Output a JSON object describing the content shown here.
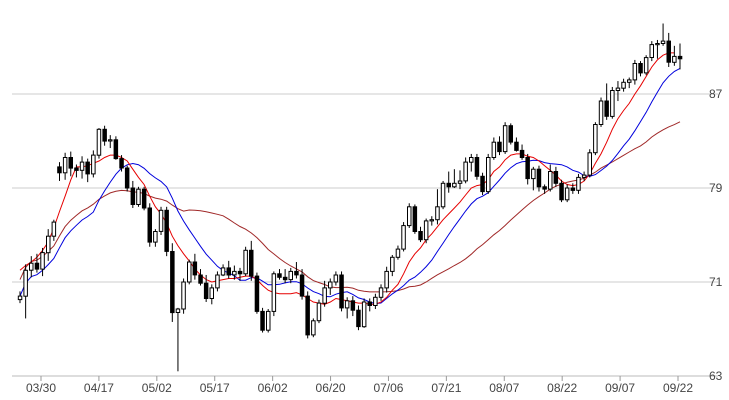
{
  "chart_data": {
    "type": "candlestick",
    "title": "",
    "xlabel": "",
    "ylabel": "",
    "ylim": [
      63,
      93
    ],
    "y_ticks": [
      "63",
      "71",
      "79",
      "87"
    ],
    "x_tick_labels": [
      "03/30",
      "04/17",
      "05/02",
      "05/17",
      "06/02",
      "06/20",
      "07/06",
      "07/21",
      "08/07",
      "08/22",
      "09/07",
      "09/22"
    ],
    "grid": true,
    "axis_side": "right",
    "colors": {
      "up_candle": "#000000",
      "down_candle": "#000000",
      "ma_short": "#e60000",
      "ma_medium": "#0000dd",
      "ma_long": "#a02828",
      "grid": "#cccccc"
    },
    "ohlc": [
      [
        69.5,
        70.2,
        69.2,
        69.8
      ],
      [
        69.8,
        72.5,
        67.9,
        72.0
      ],
      [
        72.0,
        73.2,
        71.4,
        72.6
      ],
      [
        72.6,
        73.4,
        71.8,
        72.1
      ],
      [
        72.1,
        73.9,
        71.5,
        73.5
      ],
      [
        73.5,
        75.5,
        72.8,
        74.9
      ],
      [
        74.9,
        76.3,
        74.5,
        76.1
      ],
      [
        80.8,
        81.2,
        79.6,
        80.3
      ],
      [
        80.3,
        82.0,
        79.7,
        81.6
      ],
      [
        81.6,
        82.1,
        80.0,
        80.7
      ],
      [
        80.7,
        81.0,
        79.9,
        80.5
      ],
      [
        80.5,
        81.7,
        79.8,
        81.2
      ],
      [
        81.2,
        81.5,
        79.5,
        80.2
      ],
      [
        80.2,
        82.2,
        79.9,
        81.8
      ],
      [
        81.8,
        84.1,
        81.5,
        84.0
      ],
      [
        84.0,
        84.3,
        82.6,
        83.0
      ],
      [
        83.0,
        83.5,
        82.4,
        83.1
      ],
      [
        83.1,
        83.4,
        81.4,
        81.5
      ],
      [
        81.5,
        81.8,
        80.4,
        80.7
      ],
      [
        80.7,
        80.9,
        78.7,
        79.0
      ],
      [
        79.0,
        79.6,
        77.3,
        77.6
      ],
      [
        77.6,
        79.1,
        77.4,
        78.9
      ],
      [
        78.9,
        79.1,
        77.1,
        77.3
      ],
      [
        77.3,
        77.7,
        74.0,
        74.4
      ],
      [
        74.4,
        75.5,
        74.0,
        75.3
      ],
      [
        75.3,
        77.4,
        75.0,
        77.1
      ],
      [
        77.1,
        77.4,
        73.2,
        73.6
      ],
      [
        73.6,
        74.3,
        67.6,
        68.4
      ],
      [
        68.4,
        68.8,
        63.4,
        68.7
      ],
      [
        68.7,
        71.3,
        68.3,
        71.0
      ],
      [
        71.0,
        72.9,
        70.8,
        72.7
      ],
      [
        72.7,
        73.4,
        71.2,
        71.6
      ],
      [
        71.6,
        72.1,
        70.7,
        70.9
      ],
      [
        70.9,
        71.6,
        69.3,
        69.6
      ],
      [
        69.6,
        70.8,
        69.1,
        70.5
      ],
      [
        70.5,
        71.9,
        70.2,
        71.6
      ],
      [
        71.6,
        72.5,
        71.5,
        72.2
      ],
      [
        72.2,
        72.8,
        71.3,
        71.6
      ],
      [
        71.6,
        72.4,
        71.2,
        71.9
      ],
      [
        71.9,
        72.2,
        71.1,
        71.7
      ],
      [
        71.7,
        74.0,
        71.5,
        73.7
      ],
      [
        73.7,
        74.5,
        71.1,
        71.5
      ],
      [
        71.5,
        71.8,
        68.3,
        68.5
      ],
      [
        68.5,
        68.8,
        66.7,
        66.9
      ],
      [
        66.9,
        68.7,
        66.7,
        68.5
      ],
      [
        68.5,
        71.9,
        68.1,
        71.7
      ],
      [
        71.7,
        72.1,
        71.2,
        71.4
      ],
      [
        71.4,
        72.1,
        70.9,
        71.2
      ],
      [
        71.2,
        72.2,
        70.9,
        71.9
      ],
      [
        71.9,
        72.7,
        71.3,
        71.6
      ],
      [
        71.6,
        72.1,
        69.5,
        69.8
      ],
      [
        69.8,
        70.2,
        66.2,
        66.5
      ],
      [
        66.5,
        67.9,
        66.3,
        67.7
      ],
      [
        67.7,
        69.5,
        67.5,
        69.2
      ],
      [
        69.2,
        71.1,
        68.9,
        70.5
      ],
      [
        70.5,
        71.3,
        69.9,
        71.0
      ],
      [
        71.0,
        71.9,
        70.7,
        71.6
      ],
      [
        71.6,
        71.9,
        68.5,
        68.8
      ],
      [
        68.8,
        69.7,
        67.9,
        69.4
      ],
      [
        69.4,
        69.8,
        68.1,
        68.6
      ],
      [
        68.6,
        69.0,
        66.9,
        67.2
      ],
      [
        67.2,
        69.6,
        67.1,
        69.3
      ],
      [
        69.3,
        69.6,
        68.5,
        69.0
      ],
      [
        69.0,
        70.0,
        68.7,
        69.7
      ],
      [
        69.7,
        70.8,
        69.4,
        70.5
      ],
      [
        70.5,
        72.3,
        70.1,
        71.9
      ],
      [
        71.9,
        73.3,
        71.5,
        73.1
      ],
      [
        73.1,
        74.1,
        72.9,
        73.8
      ],
      [
        73.8,
        76.1,
        73.6,
        75.8
      ],
      [
        75.8,
        77.7,
        75.6,
        77.4
      ],
      [
        77.4,
        77.6,
        75.1,
        75.3
      ],
      [
        75.3,
        75.7,
        74.4,
        74.6
      ],
      [
        74.6,
        76.4,
        74.3,
        76.2
      ],
      [
        76.2,
        76.6,
        75.8,
        76.3
      ],
      [
        76.3,
        78.9,
        75.9,
        77.4
      ],
      [
        77.4,
        79.6,
        77.2,
        79.4
      ],
      [
        79.4,
        80.4,
        78.6,
        79.1
      ],
      [
        79.1,
        80.6,
        79.0,
        79.4
      ],
      [
        79.4,
        80.5,
        78.9,
        79.6
      ],
      [
        79.6,
        81.6,
        79.4,
        81.2
      ],
      [
        81.2,
        81.9,
        80.4,
        81.6
      ],
      [
        81.6,
        81.9,
        79.7,
        80.0
      ],
      [
        80.0,
        80.3,
        78.4,
        78.7
      ],
      [
        78.7,
        81.9,
        78.5,
        81.6
      ],
      [
        81.6,
        83.3,
        81.4,
        82.9
      ],
      [
        82.9,
        83.4,
        81.8,
        82.1
      ],
      [
        82.1,
        84.6,
        81.9,
        84.3
      ],
      [
        84.3,
        84.5,
        82.7,
        82.9
      ],
      [
        82.9,
        83.3,
        82.1,
        82.2
      ],
      [
        82.2,
        82.7,
        81.4,
        81.6
      ],
      [
        81.6,
        81.9,
        79.3,
        79.8
      ],
      [
        79.8,
        80.8,
        78.8,
        80.6
      ],
      [
        80.6,
        80.9,
        78.7,
        79.1
      ],
      [
        79.1,
        79.3,
        78.5,
        78.9
      ],
      [
        78.9,
        81.0,
        78.7,
        80.4
      ],
      [
        80.4,
        80.8,
        79.1,
        79.4
      ],
      [
        79.4,
        79.7,
        77.8,
        78.0
      ],
      [
        78.0,
        79.3,
        77.8,
        79.0
      ],
      [
        79.0,
        79.4,
        78.5,
        78.8
      ],
      [
        78.8,
        80.2,
        78.5,
        79.9
      ],
      [
        79.9,
        80.4,
        79.6,
        80.1
      ],
      [
        80.1,
        82.3,
        79.9,
        82.0
      ],
      [
        82.0,
        84.6,
        81.8,
        84.4
      ],
      [
        84.4,
        86.7,
        84.2,
        86.4
      ],
      [
        86.4,
        87.9,
        84.8,
        85.1
      ],
      [
        85.1,
        87.6,
        84.9,
        87.3
      ],
      [
        87.3,
        88.1,
        86.4,
        87.5
      ],
      [
        87.5,
        88.3,
        87.2,
        88.0
      ],
      [
        88.0,
        88.4,
        87.5,
        88.2
      ],
      [
        88.2,
        89.9,
        87.8,
        89.6
      ],
      [
        89.6,
        89.8,
        88.5,
        88.8
      ],
      [
        88.8,
        90.3,
        88.6,
        90.1
      ],
      [
        90.1,
        91.5,
        89.8,
        91.2
      ],
      [
        91.2,
        91.6,
        90.0,
        91.3
      ],
      [
        91.3,
        93.0,
        91.1,
        91.5
      ],
      [
        91.5,
        92.2,
        89.3,
        89.7
      ],
      [
        89.7,
        91.1,
        89.4,
        90.2
      ],
      [
        90.2,
        91.3,
        89.1,
        90.0
      ]
    ],
    "ma_short": [
      72.0,
      72.4,
      72.7,
      73.1,
      73.7,
      74.4,
      75.6,
      77.0,
      78.3,
      79.7,
      80.8,
      80.8,
      80.9,
      81.1,
      81.3,
      81.6,
      81.8,
      81.8,
      81.6,
      81.3,
      80.6,
      79.9,
      79.3,
      78.3,
      77.4,
      76.8,
      76.0,
      74.9,
      74.1,
      73.4,
      72.8,
      72.1,
      71.6,
      71.2,
      71.0,
      71.1,
      71.2,
      71.3,
      71.3,
      71.4,
      71.5,
      71.5,
      71.2,
      70.7,
      70.3,
      70.1,
      70.0,
      70.0,
      70.0,
      70.1,
      69.9,
      69.6,
      69.3,
      69.2,
      69.1,
      69.3,
      69.6,
      69.5,
      69.4,
      69.3,
      69.2,
      69.2,
      69.1,
      69.1,
      69.3,
      69.7,
      70.3,
      70.8,
      71.7,
      72.7,
      73.4,
      73.9,
      74.6,
      75.1,
      75.7,
      76.3,
      76.8,
      77.3,
      77.8,
      78.4,
      79.0,
      79.2,
      79.3,
      79.7,
      80.4,
      80.8,
      81.4,
      81.8,
      81.9,
      81.9,
      81.7,
      81.6,
      81.3,
      80.9,
      80.5,
      80.1,
      79.6,
      79.3,
      79.2,
      79.3,
      79.6,
      80.2,
      81.1,
      81.9,
      82.9,
      84.0,
      84.9,
      85.6,
      86.2,
      87.0,
      87.7,
      88.5,
      89.3,
      89.9,
      90.3,
      90.5,
      90.5
    ]
  }
}
